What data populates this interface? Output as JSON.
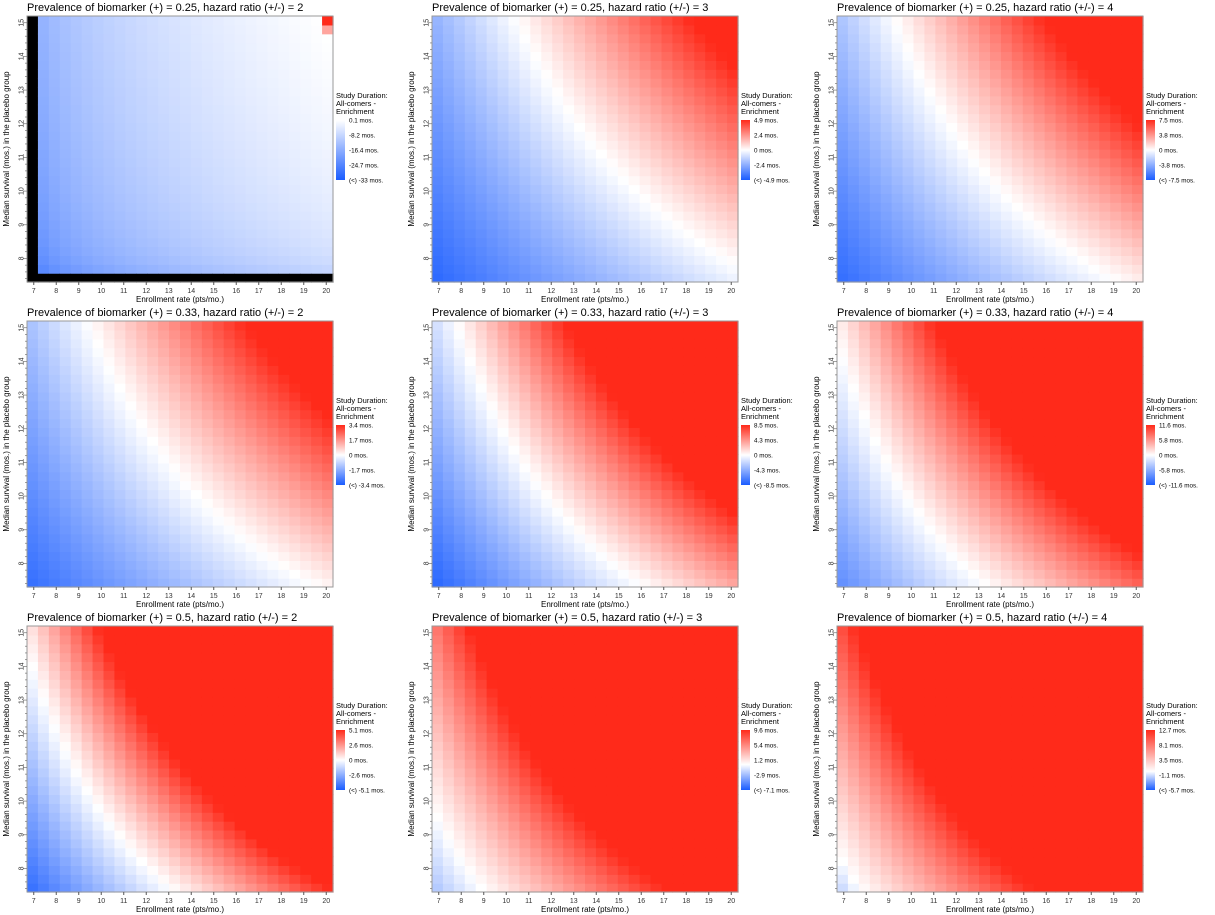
{
  "legend_title_lines": [
    "Study Duration:",
    "All-comers -",
    "Enrichment"
  ],
  "colors": {
    "negative": "#1a5cff",
    "zero": "#ffffff",
    "positive": "#ff2a1a"
  },
  "chart_data": [
    {
      "type": "heatmap",
      "title": "Prevalence of biomarker (+) = 0.25, hazard ratio (+/-) = 2",
      "xlabel": "Enrollment rate (pts/mo.)",
      "ylabel": "Median survival (mos.) in the placebo group",
      "x_ticks": [
        7,
        8,
        9,
        10,
        11,
        12,
        13,
        14,
        15,
        16,
        17,
        18,
        19,
        20
      ],
      "y_ticks": [
        8,
        9,
        10,
        11,
        12,
        13,
        14,
        15
      ],
      "xlim": [
        6.7,
        20.3
      ],
      "ylim": [
        7.3,
        15.2
      ],
      "legend_labels": [
        "0.1 mos.",
        "-8.2 mos.",
        "-16.4 mos.",
        "-24.7 mos.",
        "(<) -33 mos."
      ],
      "scale_min": -33,
      "scale_max": 0.1,
      "model": {
        "k": -11.7,
        "c": 0,
        "amp": 20.8,
        "xp": 0.5,
        "yp": 0.3
      }
    },
    {
      "type": "heatmap",
      "title": "Prevalence of biomarker (+) = 0.25, hazard ratio (+/-) = 3",
      "xlabel": "Enrollment rate (pts/mo.)",
      "ylabel": "Median survival (mos.) in the placebo group",
      "x_ticks": [
        7,
        8,
        9,
        10,
        11,
        12,
        13,
        14,
        15,
        16,
        17,
        18,
        19,
        20
      ],
      "y_ticks": [
        8,
        9,
        10,
        11,
        12,
        13,
        14,
        15
      ],
      "xlim": [
        6.7,
        20.3
      ],
      "ylim": [
        7.3,
        15.2
      ],
      "legend_labels": [
        "4.9 mos.",
        "2.4 mos.",
        "0 mos.",
        "-2.4 mos.",
        "(<) -4.9 mos."
      ],
      "scale_min": -4.9,
      "scale_max": 4.9,
      "model": {
        "k": 0.8,
        "c": 15.8,
        "amp": 6.0,
        "xp": 1,
        "yp": 1
      }
    },
    {
      "type": "heatmap",
      "title": "Prevalence of biomarker (+) = 0.25, hazard ratio (+/-) = 4",
      "xlabel": "Enrollment rate (pts/mo.)",
      "ylabel": "Median survival (mos.) in the placebo group",
      "x_ticks": [
        7,
        8,
        9,
        10,
        11,
        12,
        13,
        14,
        15,
        16,
        17,
        18,
        19,
        20
      ],
      "y_ticks": [
        8,
        9,
        10,
        11,
        12,
        13,
        14,
        15
      ],
      "xlim": [
        6.7,
        20.3
      ],
      "ylim": [
        7.3,
        15.2
      ],
      "legend_labels": [
        "7.5 mos.",
        "3.8 mos.",
        "0 mos.",
        "-3.8 mos.",
        "(<) -7.5 mos."
      ],
      "scale_min": -7.5,
      "scale_max": 7.5,
      "model": {
        "k": 0.75,
        "c": 14.0,
        "amp": 9.5,
        "xp": 1,
        "yp": 1
      }
    },
    {
      "type": "heatmap",
      "title": "Prevalence of biomarker (+) = 0.33, hazard ratio (+/-) = 2",
      "xlabel": "Enrollment rate (pts/mo.)",
      "ylabel": "Median survival (mos.) in the placebo group",
      "x_ticks": [
        7,
        8,
        9,
        10,
        11,
        12,
        13,
        14,
        15,
        16,
        17,
        18,
        19,
        20
      ],
      "y_ticks": [
        8,
        9,
        10,
        11,
        12,
        13,
        14,
        15
      ],
      "xlim": [
        6.7,
        20.3
      ],
      "ylim": [
        7.3,
        15.2
      ],
      "legend_labels": [
        "3.4 mos.",
        "1.7 mos.",
        "0 mos.",
        "-1.7 mos.",
        "(<) -3.4 mos."
      ],
      "scale_min": -3.4,
      "scale_max": 3.4,
      "model": {
        "k": 0.55,
        "c": 14.3,
        "amp": 4.2,
        "xp": 1,
        "yp": 1
      }
    },
    {
      "type": "heatmap",
      "title": "Prevalence of biomarker (+) = 0.33, hazard ratio (+/-) = 3",
      "xlabel": "Enrollment rate (pts/mo.)",
      "ylabel": "Median survival (mos.) in the placebo group",
      "x_ticks": [
        7,
        8,
        9,
        10,
        11,
        12,
        13,
        14,
        15,
        16,
        17,
        18,
        19,
        20
      ],
      "y_ticks": [
        8,
        9,
        10,
        11,
        12,
        13,
        14,
        15
      ],
      "xlim": [
        6.7,
        20.3
      ],
      "ylim": [
        7.3,
        15.2
      ],
      "legend_labels": [
        "8.5 mos.",
        "4.3 mos.",
        "0 mos.",
        "-4.3 mos.",
        "(<) -8.5 mos."
      ],
      "scale_min": -8.5,
      "scale_max": 8.5,
      "model": {
        "k": 1.05,
        "c": 11.8,
        "amp": 12.5,
        "xp": 1,
        "yp": 1
      }
    },
    {
      "type": "heatmap",
      "title": "Prevalence of biomarker (+) = 0.33, hazard ratio (+/-) = 4",
      "xlabel": "Enrollment rate (pts/mo.)",
      "ylabel": "Median survival (mos.) in the placebo group",
      "x_ticks": [
        7,
        8,
        9,
        10,
        11,
        12,
        13,
        14,
        15,
        16,
        17,
        18,
        19,
        20
      ],
      "y_ticks": [
        8,
        9,
        10,
        11,
        12,
        13,
        14,
        15
      ],
      "xlim": [
        6.7,
        20.3
      ],
      "ylim": [
        7.3,
        15.2
      ],
      "legend_labels": [
        "11.6 mos.",
        "5.8 mos.",
        "0 mos.",
        "-5.8 mos.",
        "(<) -11.6 mos."
      ],
      "scale_min": -11.6,
      "scale_max": 11.6,
      "model": {
        "k": 1.35,
        "c": 9.8,
        "amp": 15.0,
        "xp": 1,
        "yp": 1
      }
    },
    {
      "type": "heatmap",
      "title": "Prevalence of biomarker (+) = 0.5, hazard ratio (+/-) = 2",
      "xlabel": "Enrollment rate (pts/mo.)",
      "ylabel": "Median survival (mos.) in the placebo group",
      "x_ticks": [
        7,
        8,
        9,
        10,
        11,
        12,
        13,
        14,
        15,
        16,
        17,
        18,
        19,
        20
      ],
      "y_ticks": [
        8,
        9,
        10,
        11,
        12,
        13,
        14,
        15
      ],
      "xlim": [
        6.7,
        20.3
      ],
      "ylim": [
        7.3,
        15.2
      ],
      "legend_labels": [
        "5.1 mos.",
        "2.6 mos.",
        "0 mos.",
        "-2.6 mos.",
        "(<) -5.1 mos."
      ],
      "scale_min": -5.1,
      "scale_max": 5.1,
      "model": {
        "k": 0.62,
        "c": 9.7,
        "amp": 8.5,
        "xp": 1,
        "yp": 1
      }
    },
    {
      "type": "heatmap",
      "title": "Prevalence of biomarker (+) = 0.5, hazard ratio (+/-) = 3",
      "xlabel": "Enrollment rate (pts/mo.)",
      "ylabel": "Median survival (mos.) in the placebo group",
      "x_ticks": [
        7,
        8,
        9,
        10,
        11,
        12,
        13,
        14,
        15,
        16,
        17,
        18,
        19,
        20
      ],
      "y_ticks": [
        8,
        9,
        10,
        11,
        12,
        13,
        14,
        15
      ],
      "xlim": [
        6.7,
        20.3
      ],
      "ylim": [
        7.3,
        15.2
      ],
      "legend_labels": [
        "9.6 mos.",
        "5.4 mos.",
        "1.2 mos.",
        "-2.9 mos.",
        "(<) -7.1 mos."
      ],
      "scale_min": -7.1,
      "scale_max": 9.6,
      "model": {
        "k": 0.55,
        "c": 6.6,
        "amp": 9.5,
        "xp": 1,
        "yp": 1
      }
    },
    {
      "type": "heatmap",
      "title": "Prevalence of biomarker (+) = 0.5, hazard ratio (+/-) = 4",
      "xlabel": "Enrollment rate (pts/mo.)",
      "ylabel": "Median survival (mos.) in the placebo group",
      "x_ticks": [
        7,
        8,
        9,
        10,
        11,
        12,
        13,
        14,
        15,
        16,
        17,
        18,
        19,
        20
      ],
      "y_ticks": [
        8,
        9,
        10,
        11,
        12,
        13,
        14,
        15
      ],
      "xlim": [
        6.7,
        20.3
      ],
      "ylim": [
        7.3,
        15.2
      ],
      "legend_labels": [
        "12.7 mos.",
        "8.1 mos.",
        "3.5 mos.",
        "-1.1 mos.",
        "(<) -5.7 mos."
      ],
      "scale_min": -5.7,
      "scale_max": 12.7,
      "model": {
        "k": 0.65,
        "c": 5.7,
        "amp": 11.5,
        "xp": 1,
        "yp": 1
      }
    }
  ]
}
